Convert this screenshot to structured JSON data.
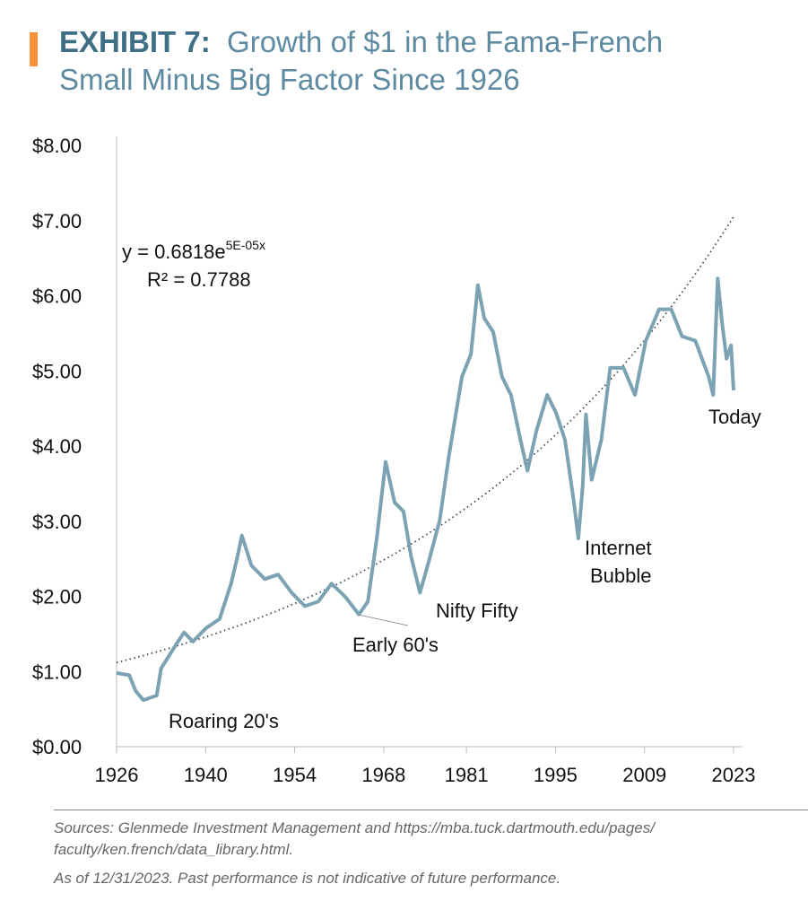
{
  "header": {
    "exhibit_label": "EXHIBIT 7:",
    "title_line1": "Growth of $1 in the Fama-French",
    "title_line2": "Small Minus Big Factor Since 1926",
    "accent_color": "#f7923a",
    "title_color": "#5d8aa0"
  },
  "chart_data": {
    "type": "line",
    "title": "Growth of $1 in the Fama-French Small Minus Big Factor Since 1926",
    "xlabel": "",
    "ylabel": "",
    "ylim": [
      0,
      8
    ],
    "xlim": [
      1926,
      2023
    ],
    "y_ticks": [
      "$0.00",
      "$1.00",
      "$2.00",
      "$3.00",
      "$4.00",
      "$5.00",
      "$6.00",
      "$7.00",
      "$8.00"
    ],
    "x_ticks": [
      "1926",
      "1940",
      "1954",
      "1968",
      "1981",
      "1995",
      "2009",
      "2023"
    ],
    "grid": false,
    "line_color": "#7ba3b3",
    "series": [
      {
        "x": [
          1926,
          1928,
          1929,
          1930.2,
          1932.3,
          1933,
          1935.2,
          1936.6,
          1938,
          1940.1,
          1942.2,
          1944,
          1945,
          1945.7,
          1947.2,
          1949.3,
          1951.4,
          1953.5,
          1955.6,
          1957.7,
          1959.8,
          1962,
          1964.1,
          1965.5,
          1966.9,
          1968.3,
          1969.7,
          1971.1,
          1972.3,
          1973.7,
          1975.1,
          1976.8,
          1978.2,
          1980.3,
          1981.7,
          1982.8,
          1983.8,
          1985.2,
          1986.6,
          1988,
          1989.5,
          1990.6,
          1992,
          1993.7,
          1995.1,
          1996.5,
          1997.9,
          1998.6,
          1999.3,
          1999.8,
          2000.7,
          2002.2,
          2003.6,
          2005.7,
          2007.5,
          2009.2,
          2011.3,
          2013.2,
          2014.9,
          2017,
          2019.1,
          2019.8,
          2020.5,
          2021.2,
          2021.9,
          2022.6,
          2023
        ],
        "values": [
          0.98,
          0.95,
          0.74,
          0.62,
          0.68,
          1.04,
          1.34,
          1.52,
          1.4,
          1.58,
          1.7,
          2.17,
          2.53,
          2.81,
          2.41,
          2.23,
          2.29,
          2.05,
          1.87,
          1.93,
          2.17,
          1.99,
          1.76,
          1.93,
          2.77,
          3.79,
          3.25,
          3.13,
          2.53,
          2.05,
          2.47,
          3.01,
          3.84,
          4.92,
          5.22,
          6.14,
          5.7,
          5.52,
          4.92,
          4.68,
          4.08,
          3.67,
          4.2,
          4.68,
          4.44,
          4.08,
          3.25,
          2.77,
          3.49,
          4.42,
          3.55,
          4.08,
          5.04,
          5.04,
          4.68,
          5.4,
          5.82,
          5.82,
          5.46,
          5.4,
          4.92,
          4.68,
          6.23,
          5.64,
          5.16,
          5.34,
          4.74
        ]
      }
    ],
    "trendline": {
      "type": "exponential",
      "style": "dotted",
      "equation_prefix": "y = 0.6818e",
      "equation_exponent": "5E-05x",
      "r_squared": "R² = 0.7788",
      "start_value": 1.12,
      "end_value": 7.05
    },
    "annotations": [
      {
        "text": "Roaring 20's",
        "x": 1932,
        "y": 0.62
      },
      {
        "text": "Early 60's",
        "x": 1964,
        "y": 1.76
      },
      {
        "text": "Nifty Fifty",
        "x": 1974,
        "y": 2.05
      },
      {
        "text": "Internet",
        "x": 1999,
        "y": 2.77
      },
      {
        "text": "Bubble",
        "x": 1999,
        "y": 2.77
      },
      {
        "text": "Today",
        "x": 2023,
        "y": 4.74
      }
    ]
  },
  "footer": {
    "sources_line1": "Sources: Glenmede Investment Management and https://mba.tuck.dartmouth.edu/pages/",
    "sources_line2": "faculty/ken.french/data_library.html.",
    "disclaimer": "As of 12/31/2023. Past performance is not indicative of future performance."
  }
}
